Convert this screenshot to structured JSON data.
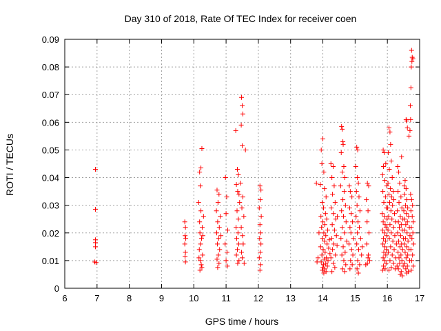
{
  "chart_data": {
    "type": "scatter",
    "title": "Day 310 of 2018, Rate Of TEC Index for receiver coen",
    "xlabel": "GPS time / hours",
    "ylabel": "ROTI / TECUs",
    "xlim": [
      6,
      17
    ],
    "ylim": [
      0,
      0.09
    ],
    "x_ticks": [
      "6",
      "7",
      "8",
      "9",
      "10",
      "11",
      "12",
      "13",
      "14",
      "15",
      "16",
      "17"
    ],
    "y_ticks": [
      "0",
      "0.01",
      "0.02",
      "0.03",
      "0.04",
      "0.05",
      "0.06",
      "0.07",
      "0.08",
      "0.09"
    ],
    "grid": true,
    "grid_style": "dotted",
    "marker": "plus",
    "series_color": "#ff0000",
    "points": [
      [
        6.95,
        0.043
      ],
      [
        6.95,
        0.0285
      ],
      [
        6.95,
        0.0175
      ],
      [
        6.95,
        0.0165
      ],
      [
        6.95,
        0.015
      ],
      [
        6.93,
        0.0095
      ],
      [
        6.97,
        0.0093
      ],
      [
        9.72,
        0.024
      ],
      [
        9.74,
        0.022
      ],
      [
        9.73,
        0.019
      ],
      [
        9.75,
        0.018
      ],
      [
        9.72,
        0.016
      ],
      [
        9.74,
        0.013
      ],
      [
        9.73,
        0.0115
      ],
      [
        9.74,
        0.0095
      ],
      [
        10.18,
        0.042
      ],
      [
        10.22,
        0.0435
      ],
      [
        10.25,
        0.0505
      ],
      [
        10.2,
        0.037
      ],
      [
        10.15,
        0.031
      ],
      [
        10.22,
        0.028
      ],
      [
        10.18,
        0.024
      ],
      [
        10.26,
        0.022
      ],
      [
        10.19,
        0.02
      ],
      [
        10.24,
        0.018
      ],
      [
        10.21,
        0.016
      ],
      [
        10.17,
        0.014
      ],
      [
        10.27,
        0.012
      ],
      [
        10.2,
        0.01
      ],
      [
        10.23,
        0.0085
      ],
      [
        10.25,
        0.0075
      ],
      [
        10.19,
        0.0065
      ],
      [
        10.3,
        0.026
      ],
      [
        10.28,
        0.019
      ],
      [
        10.16,
        0.011
      ],
      [
        10.72,
        0.0355
      ],
      [
        10.78,
        0.034
      ],
      [
        10.75,
        0.031
      ],
      [
        10.7,
        0.028
      ],
      [
        10.82,
        0.026
      ],
      [
        10.74,
        0.024
      ],
      [
        10.79,
        0.022
      ],
      [
        10.71,
        0.02
      ],
      [
        10.77,
        0.018
      ],
      [
        10.73,
        0.016
      ],
      [
        10.8,
        0.014
      ],
      [
        10.76,
        0.012
      ],
      [
        10.72,
        0.0105
      ],
      [
        10.78,
        0.009
      ],
      [
        10.74,
        0.0075
      ],
      [
        10.84,
        0.019
      ],
      [
        10.98,
        0.04
      ],
      [
        11.02,
        0.033
      ],
      [
        11.0,
        0.027
      ],
      [
        11.05,
        0.021
      ],
      [
        10.97,
        0.016
      ],
      [
        11.03,
        0.013
      ],
      [
        11.0,
        0.01
      ],
      [
        11.04,
        0.008
      ],
      [
        11.35,
        0.043
      ],
      [
        11.38,
        0.041
      ],
      [
        11.32,
        0.0375
      ],
      [
        11.36,
        0.035
      ],
      [
        11.4,
        0.034
      ],
      [
        11.3,
        0.057
      ],
      [
        11.42,
        0.031
      ],
      [
        11.34,
        0.028
      ],
      [
        11.38,
        0.025
      ],
      [
        11.31,
        0.022
      ],
      [
        11.37,
        0.02
      ],
      [
        11.33,
        0.018
      ],
      [
        11.39,
        0.016
      ],
      [
        11.35,
        0.014
      ],
      [
        11.32,
        0.012
      ],
      [
        11.4,
        0.01
      ],
      [
        11.36,
        0.009
      ],
      [
        11.48,
        0.069
      ],
      [
        11.5,
        0.066
      ],
      [
        11.52,
        0.063
      ],
      [
        11.47,
        0.059
      ],
      [
        11.5,
        0.0515
      ],
      [
        11.6,
        0.05
      ],
      [
        11.45,
        0.038
      ],
      [
        11.52,
        0.033
      ],
      [
        11.49,
        0.029
      ],
      [
        11.55,
        0.026
      ],
      [
        11.47,
        0.022
      ],
      [
        11.51,
        0.019
      ],
      [
        11.53,
        0.016
      ],
      [
        11.48,
        0.013
      ],
      [
        11.5,
        0.011
      ],
      [
        11.56,
        0.009
      ],
      [
        12.05,
        0.037
      ],
      [
        12.08,
        0.0355
      ],
      [
        12.06,
        0.032
      ],
      [
        12.03,
        0.029
      ],
      [
        12.09,
        0.026
      ],
      [
        12.05,
        0.023
      ],
      [
        12.07,
        0.02
      ],
      [
        12.04,
        0.018
      ],
      [
        12.08,
        0.016
      ],
      [
        12.06,
        0.013
      ],
      [
        12.03,
        0.011
      ],
      [
        12.07,
        0.0085
      ],
      [
        12.05,
        0.0065
      ],
      [
        13.8,
        0.038
      ],
      [
        13.85,
        0.011
      ],
      [
        13.82,
        0.0095
      ],
      [
        13.88,
        0.02
      ],
      [
        13.95,
        0.05
      ],
      [
        14.0,
        0.054
      ],
      [
        13.97,
        0.045
      ],
      [
        14.03,
        0.042
      ],
      [
        13.92,
        0.0375
      ],
      [
        14.05,
        0.036
      ],
      [
        14.1,
        0.033
      ],
      [
        13.98,
        0.031
      ],
      [
        14.02,
        0.029
      ],
      [
        14.08,
        0.027
      ],
      [
        13.94,
        0.026
      ],
      [
        14.12,
        0.025
      ],
      [
        14.0,
        0.024
      ],
      [
        14.06,
        0.023
      ],
      [
        13.96,
        0.022
      ],
      [
        14.15,
        0.021
      ],
      [
        14.03,
        0.02
      ],
      [
        14.09,
        0.019
      ],
      [
        13.99,
        0.018
      ],
      [
        14.2,
        0.0175
      ],
      [
        14.05,
        0.017
      ],
      [
        14.13,
        0.016
      ],
      [
        13.93,
        0.015
      ],
      [
        14.18,
        0.0145
      ],
      [
        14.01,
        0.014
      ],
      [
        14.07,
        0.013
      ],
      [
        14.22,
        0.0125
      ],
      [
        13.97,
        0.012
      ],
      [
        14.11,
        0.011
      ],
      [
        14.04,
        0.0105
      ],
      [
        14.16,
        0.01
      ],
      [
        13.95,
        0.0095
      ],
      [
        14.09,
        0.009
      ],
      [
        14.02,
        0.0085
      ],
      [
        14.14,
        0.008
      ],
      [
        14.0,
        0.0075
      ],
      [
        14.06,
        0.007
      ],
      [
        13.98,
        0.0065
      ],
      [
        14.1,
        0.006
      ],
      [
        14.03,
        0.0055
      ],
      [
        14.25,
        0.045
      ],
      [
        14.32,
        0.044
      ],
      [
        14.28,
        0.04
      ],
      [
        14.35,
        0.037
      ],
      [
        14.3,
        0.034
      ],
      [
        14.38,
        0.031
      ],
      [
        14.26,
        0.029
      ],
      [
        14.33,
        0.027
      ],
      [
        14.4,
        0.025
      ],
      [
        14.29,
        0.023
      ],
      [
        14.36,
        0.021
      ],
      [
        14.42,
        0.019
      ],
      [
        14.27,
        0.018
      ],
      [
        14.34,
        0.016
      ],
      [
        14.3,
        0.014
      ],
      [
        14.39,
        0.012
      ],
      [
        14.25,
        0.011
      ],
      [
        14.32,
        0.009
      ],
      [
        14.37,
        0.0075
      ],
      [
        14.28,
        0.006
      ],
      [
        14.45,
        0.026
      ],
      [
        14.44,
        0.0155
      ],
      [
        14.58,
        0.0585
      ],
      [
        14.6,
        0.0575
      ],
      [
        14.62,
        0.053
      ],
      [
        14.63,
        0.052
      ],
      [
        14.57,
        0.049
      ],
      [
        14.65,
        0.044
      ],
      [
        14.6,
        0.042
      ],
      [
        14.68,
        0.04
      ],
      [
        14.55,
        0.037
      ],
      [
        14.66,
        0.035
      ],
      [
        14.62,
        0.032
      ],
      [
        14.7,
        0.03
      ],
      [
        14.58,
        0.028
      ],
      [
        14.64,
        0.026
      ],
      [
        14.72,
        0.024
      ],
      [
        14.6,
        0.022
      ],
      [
        14.67,
        0.02
      ],
      [
        14.56,
        0.018
      ],
      [
        14.74,
        0.017
      ],
      [
        14.63,
        0.015
      ],
      [
        14.69,
        0.013
      ],
      [
        14.59,
        0.012
      ],
      [
        14.65,
        0.01
      ],
      [
        14.71,
        0.0085
      ],
      [
        14.61,
        0.007
      ],
      [
        14.68,
        0.006
      ],
      [
        14.82,
        0.037
      ],
      [
        14.85,
        0.035
      ],
      [
        14.9,
        0.033
      ],
      [
        14.83,
        0.029
      ],
      [
        14.88,
        0.027
      ],
      [
        14.92,
        0.024
      ],
      [
        14.84,
        0.022
      ],
      [
        14.87,
        0.02
      ],
      [
        14.95,
        0.018
      ],
      [
        14.81,
        0.016
      ],
      [
        14.89,
        0.014
      ],
      [
        14.93,
        0.012
      ],
      [
        14.86,
        0.01
      ],
      [
        14.91,
        0.0085
      ],
      [
        14.84,
        0.007
      ],
      [
        15.05,
        0.051
      ],
      [
        15.08,
        0.05
      ],
      [
        15.02,
        0.044
      ],
      [
        15.07,
        0.04
      ],
      [
        15.1,
        0.038
      ],
      [
        15.04,
        0.035
      ],
      [
        15.12,
        0.033
      ],
      [
        15.06,
        0.03
      ],
      [
        15.15,
        0.028
      ],
      [
        15.03,
        0.026
      ],
      [
        15.09,
        0.024
      ],
      [
        15.13,
        0.022
      ],
      [
        15.07,
        0.02
      ],
      [
        15.17,
        0.018
      ],
      [
        15.05,
        0.016
      ],
      [
        15.11,
        0.014
      ],
      [
        15.2,
        0.012
      ],
      [
        15.08,
        0.01
      ],
      [
        15.14,
        0.0085
      ],
      [
        15.06,
        0.007
      ],
      [
        15.1,
        0.0055
      ],
      [
        15.22,
        0.015
      ],
      [
        15.38,
        0.038
      ],
      [
        15.42,
        0.037
      ],
      [
        15.35,
        0.032
      ],
      [
        15.4,
        0.028
      ],
      [
        15.37,
        0.024
      ],
      [
        15.43,
        0.02
      ],
      [
        15.36,
        0.016
      ],
      [
        15.41,
        0.012
      ],
      [
        15.38,
        0.009
      ],
      [
        15.45,
        0.01
      ],
      [
        15.33,
        0.0085
      ],
      [
        15.4,
        0.011
      ],
      [
        15.87,
        0.05
      ],
      [
        15.9,
        0.049
      ],
      [
        15.88,
        0.044
      ],
      [
        15.85,
        0.041
      ],
      [
        15.95,
        0.045
      ],
      [
        15.92,
        0.039
      ],
      [
        15.98,
        0.037
      ],
      [
        15.86,
        0.035
      ],
      [
        15.94,
        0.033
      ],
      [
        15.89,
        0.031
      ],
      [
        15.97,
        0.029
      ],
      [
        15.84,
        0.027
      ],
      [
        15.91,
        0.026
      ],
      [
        15.99,
        0.025
      ],
      [
        15.87,
        0.024
      ],
      [
        15.93,
        0.023
      ],
      [
        15.96,
        0.022
      ],
      [
        15.85,
        0.021
      ],
      [
        15.9,
        0.02
      ],
      [
        15.98,
        0.019
      ],
      [
        15.88,
        0.018
      ],
      [
        15.94,
        0.017
      ],
      [
        15.86,
        0.016
      ],
      [
        15.92,
        0.015
      ],
      [
        15.97,
        0.014
      ],
      [
        15.89,
        0.013
      ],
      [
        15.95,
        0.012
      ],
      [
        15.87,
        0.011
      ],
      [
        15.91,
        0.01
      ],
      [
        15.96,
        0.009
      ],
      [
        15.88,
        0.008
      ],
      [
        15.93,
        0.007
      ],
      [
        15.85,
        0.0065
      ],
      [
        16.05,
        0.058
      ],
      [
        16.08,
        0.0565
      ],
      [
        16.1,
        0.052
      ],
      [
        16.03,
        0.049
      ],
      [
        16.12,
        0.046
      ],
      [
        16.06,
        0.043
      ],
      [
        16.15,
        0.04
      ],
      [
        16.02,
        0.038
      ],
      [
        16.09,
        0.036
      ],
      [
        16.18,
        0.035
      ],
      [
        16.05,
        0.034
      ],
      [
        16.13,
        0.033
      ],
      [
        16.2,
        0.032
      ],
      [
        16.07,
        0.031
      ],
      [
        16.16,
        0.03
      ],
      [
        16.01,
        0.029
      ],
      [
        16.11,
        0.028
      ],
      [
        16.22,
        0.027
      ],
      [
        16.04,
        0.026
      ],
      [
        16.14,
        0.025
      ],
      [
        16.25,
        0.024
      ],
      [
        16.08,
        0.023
      ],
      [
        16.19,
        0.022
      ],
      [
        16.02,
        0.021
      ],
      [
        16.12,
        0.02
      ],
      [
        16.23,
        0.019
      ],
      [
        16.06,
        0.018
      ],
      [
        16.17,
        0.017
      ],
      [
        16.28,
        0.016
      ],
      [
        16.1,
        0.015
      ],
      [
        16.21,
        0.014
      ],
      [
        16.03,
        0.013
      ],
      [
        16.15,
        0.012
      ],
      [
        16.26,
        0.011
      ],
      [
        16.08,
        0.01
      ],
      [
        16.19,
        0.009
      ],
      [
        16.3,
        0.008
      ],
      [
        16.12,
        0.0075
      ],
      [
        16.24,
        0.007
      ],
      [
        16.05,
        0.0065
      ],
      [
        16.32,
        0.044
      ],
      [
        16.35,
        0.042
      ],
      [
        16.38,
        0.038
      ],
      [
        16.33,
        0.035
      ],
      [
        16.42,
        0.033
      ],
      [
        16.36,
        0.031
      ],
      [
        16.45,
        0.029
      ],
      [
        16.31,
        0.028
      ],
      [
        16.4,
        0.026
      ],
      [
        16.48,
        0.025
      ],
      [
        16.34,
        0.024
      ],
      [
        16.43,
        0.023
      ],
      [
        16.37,
        0.022
      ],
      [
        16.46,
        0.021
      ],
      [
        16.32,
        0.02
      ],
      [
        16.41,
        0.019
      ],
      [
        16.5,
        0.018
      ],
      [
        16.35,
        0.017
      ],
      [
        16.44,
        0.016
      ],
      [
        16.39,
        0.015
      ],
      [
        16.47,
        0.014
      ],
      [
        16.33,
        0.013
      ],
      [
        16.42,
        0.012
      ],
      [
        16.36,
        0.011
      ],
      [
        16.45,
        0.01
      ],
      [
        16.38,
        0.009
      ],
      [
        16.49,
        0.008
      ],
      [
        16.34,
        0.007
      ],
      [
        16.43,
        0.006
      ],
      [
        16.4,
        0.005
      ],
      [
        16.46,
        0.0045
      ],
      [
        16.44,
        0.0475
      ],
      [
        16.52,
        0.037
      ],
      [
        16.55,
        0.039
      ],
      [
        16.58,
        0.036
      ],
      [
        16.53,
        0.034
      ],
      [
        16.6,
        0.032
      ],
      [
        16.56,
        0.03
      ],
      [
        16.63,
        0.029
      ],
      [
        16.51,
        0.028
      ],
      [
        16.59,
        0.027
      ],
      [
        16.66,
        0.026
      ],
      [
        16.54,
        0.025
      ],
      [
        16.62,
        0.024
      ],
      [
        16.57,
        0.023
      ],
      [
        16.68,
        0.022
      ],
      [
        16.53,
        0.021
      ],
      [
        16.61,
        0.02
      ],
      [
        16.7,
        0.019
      ],
      [
        16.56,
        0.018
      ],
      [
        16.64,
        0.017
      ],
      [
        16.52,
        0.016
      ],
      [
        16.6,
        0.015
      ],
      [
        16.67,
        0.014
      ],
      [
        16.55,
        0.013
      ],
      [
        16.63,
        0.012
      ],
      [
        16.58,
        0.011
      ],
      [
        16.69,
        0.01
      ],
      [
        16.54,
        0.009
      ],
      [
        16.62,
        0.008
      ],
      [
        16.57,
        0.007
      ],
      [
        16.65,
        0.006
      ],
      [
        16.6,
        0.0055
      ],
      [
        16.58,
        0.061
      ],
      [
        16.6,
        0.0605
      ],
      [
        16.62,
        0.058
      ],
      [
        16.67,
        0.055
      ],
      [
        16.75,
        0.086
      ],
      [
        16.77,
        0.0835
      ],
      [
        16.79,
        0.083
      ],
      [
        16.76,
        0.082
      ],
      [
        16.74,
        0.08
      ],
      [
        16.73,
        0.0725
      ],
      [
        16.71,
        0.066
      ],
      [
        16.72,
        0.061
      ],
      [
        16.7,
        0.057
      ],
      [
        16.72,
        0.034
      ],
      [
        16.75,
        0.032
      ],
      [
        16.78,
        0.03
      ],
      [
        16.73,
        0.028
      ],
      [
        16.77,
        0.026
      ],
      [
        16.8,
        0.024
      ],
      [
        16.74,
        0.022
      ],
      [
        16.79,
        0.02
      ],
      [
        16.76,
        0.018
      ],
      [
        16.81,
        0.016
      ],
      [
        16.73,
        0.014
      ],
      [
        16.78,
        0.012
      ],
      [
        16.75,
        0.01
      ],
      [
        16.8,
        0.008
      ],
      [
        16.74,
        0.0065
      ]
    ]
  }
}
